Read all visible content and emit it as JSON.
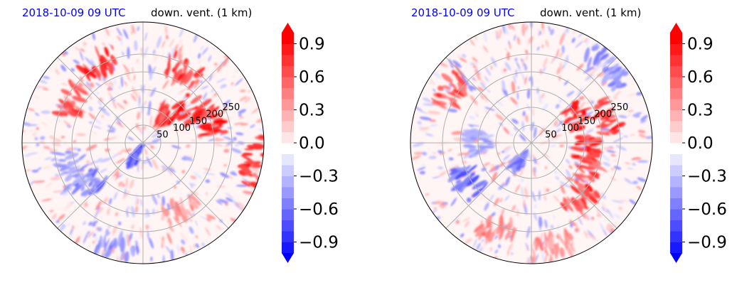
{
  "chart_data": [
    {
      "type": "heatmap",
      "title_left": "2018-10-09 09 UTC",
      "title_right": "down. vent. (1 km)",
      "projection": "polar",
      "radial_ticks": [
        "50",
        "100",
        "150",
        "200",
        "250"
      ],
      "radial_tick_values": [
        50,
        100,
        150,
        200,
        250
      ],
      "r_max": 340,
      "colorbar": {
        "ticks": [
          "0.9",
          "0.6",
          "0.3",
          "0.0",
          "−0.3",
          "−0.6",
          "−0.9"
        ],
        "tick_values": [
          0.9,
          0.6,
          0.3,
          0.0,
          -0.3,
          -0.6,
          -0.9
        ],
        "range": [
          -1.0,
          1.0
        ],
        "cmap": "bwr",
        "extend": "both"
      },
      "features": [
        {
          "az": 40,
          "r": 95,
          "value": 1.0
        },
        {
          "az": 55,
          "r": 165,
          "value": 1.0
        },
        {
          "az": 70,
          "r": 200,
          "value": 1.0
        },
        {
          "az": 30,
          "r": 235,
          "value": 0.9
        },
        {
          "az": 330,
          "r": 255,
          "value": 0.95
        },
        {
          "az": 300,
          "r": 230,
          "value": 0.8
        },
        {
          "az": 210,
          "r": 45,
          "value": -0.8
        },
        {
          "az": 235,
          "r": 195,
          "value": -0.6
        },
        {
          "az": 195,
          "r": 300,
          "value": -0.5
        },
        {
          "az": 150,
          "r": 220,
          "value": 0.5
        },
        {
          "az": 100,
          "r": 320,
          "value": 0.9
        },
        {
          "az": 250,
          "r": 230,
          "value": -0.4
        }
      ]
    },
    {
      "type": "heatmap",
      "title_left": "2018-10-09 09 UTC",
      "title_right": "down. vent. (1 km)",
      "projection": "polar",
      "radial_ticks": [
        "50",
        "100",
        "150",
        "200",
        "250"
      ],
      "radial_tick_values": [
        50,
        100,
        150,
        200,
        250
      ],
      "r_max": 340,
      "colorbar": {
        "ticks": [
          "0.9",
          "0.6",
          "0.3",
          "0.0",
          "−0.3",
          "−0.6",
          "−0.9"
        ],
        "tick_values": [
          0.9,
          0.6,
          0.3,
          0.0,
          -0.3,
          -0.6,
          -0.9
        ],
        "range": [
          -1.0,
          1.0
        ],
        "cmap": "bwr",
        "extend": "both"
      },
      "features": [
        {
          "az": 60,
          "r": 150,
          "value": 1.0
        },
        {
          "az": 70,
          "r": 230,
          "value": 1.0
        },
        {
          "az": 95,
          "r": 160,
          "value": 0.9
        },
        {
          "az": 120,
          "r": 180,
          "value": 0.9
        },
        {
          "az": 140,
          "r": 210,
          "value": 0.85
        },
        {
          "az": 305,
          "r": 270,
          "value": 0.8
        },
        {
          "az": 240,
          "r": 210,
          "value": -0.7
        },
        {
          "az": 215,
          "r": 60,
          "value": -0.6
        },
        {
          "az": 200,
          "r": 270,
          "value": 0.6
        },
        {
          "az": 165,
          "r": 300,
          "value": 0.5
        },
        {
          "az": 45,
          "r": 305,
          "value": -0.5
        },
        {
          "az": 270,
          "r": 150,
          "value": -0.4
        }
      ]
    }
  ]
}
